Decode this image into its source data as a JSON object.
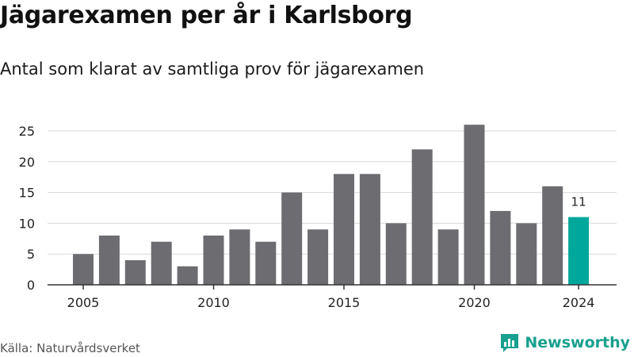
{
  "title": "Jägarexamen per år i Karlsborg",
  "subtitle": "Antal som klarat av samtliga prov för jägarexamen",
  "source": "Källa: Naturvårdsverket",
  "brand": {
    "name": "Newsworthy",
    "icon": "newsworthy-logo-icon",
    "color": "#19a08f"
  },
  "colors": {
    "bar": "#6d6c71",
    "highlight": "#00a79b",
    "grid": "#d9d9d9",
    "axis": "#333333"
  },
  "chart_data": {
    "type": "bar",
    "title": "Jägarexamen per år i Karlsborg",
    "subtitle": "Antal som klarat av samtliga prov för jägarexamen",
    "xlabel": "",
    "ylabel": "",
    "x": [
      2005,
      2006,
      2007,
      2008,
      2009,
      2010,
      2011,
      2012,
      2013,
      2014,
      2015,
      2016,
      2017,
      2018,
      2019,
      2020,
      2021,
      2022,
      2023,
      2024
    ],
    "values": [
      5,
      8,
      4,
      7,
      3,
      8,
      9,
      7,
      15,
      9,
      18,
      18,
      10,
      22,
      9,
      26,
      12,
      10,
      16,
      11
    ],
    "ylim": [
      0,
      27
    ],
    "yticks": [
      0,
      5,
      10,
      15,
      20,
      25
    ],
    "xticks": [
      2005,
      2010,
      2015,
      2020,
      2024
    ],
    "highlight_x": 2024,
    "data_labels": [
      {
        "x": 2024,
        "text": "11"
      }
    ],
    "grid": "horizontal",
    "legend": "none"
  }
}
